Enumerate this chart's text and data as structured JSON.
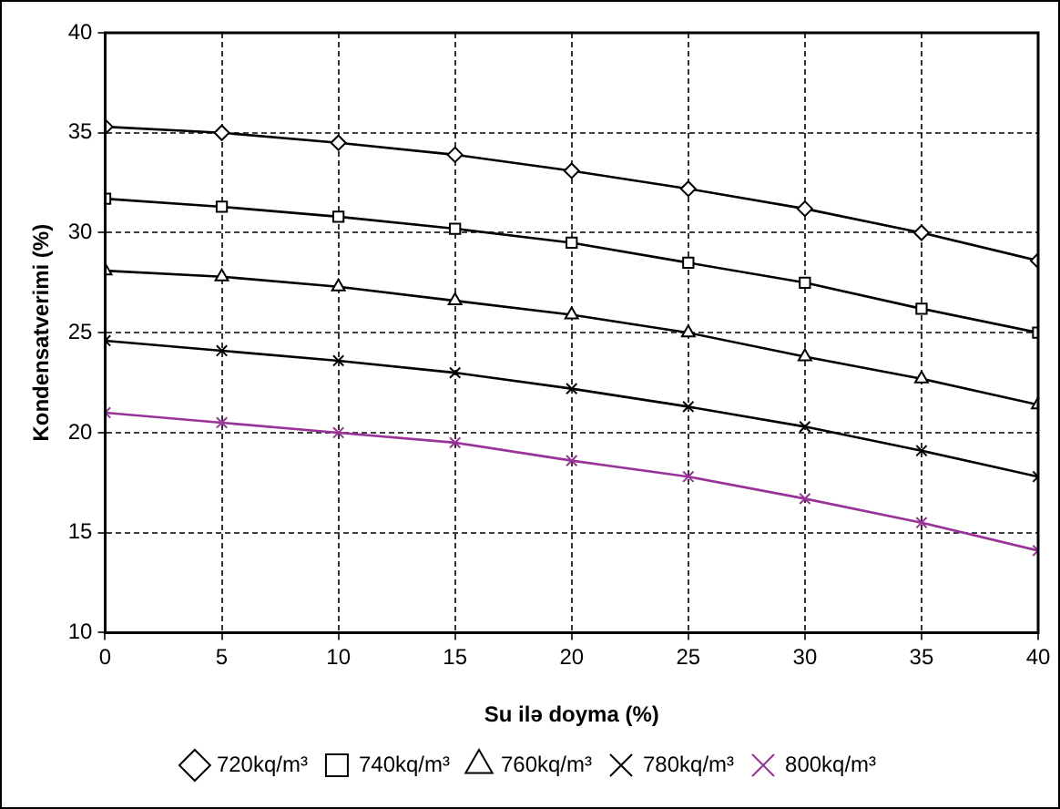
{
  "chart_data": {
    "type": "line",
    "xlabel": "Su ilə doyma (%)",
    "ylabel": "Kondensatverimi (%)",
    "x": [
      0,
      5,
      10,
      15,
      20,
      25,
      30,
      35,
      40
    ],
    "xlim": [
      0,
      40
    ],
    "xticks": [
      0,
      5,
      10,
      15,
      20,
      25,
      30,
      35,
      40
    ],
    "ylim": [
      10,
      40
    ],
    "yticks": [
      10,
      15,
      20,
      25,
      30,
      35,
      40
    ],
    "grid": true,
    "legend": "bottom",
    "line_style": "solid",
    "series": [
      {
        "name": "720kq/m³",
        "color": "#000000",
        "marker": "diamond",
        "values": [
          35.3,
          35,
          34.5,
          33.9,
          33.1,
          32.2,
          31.2,
          30,
          28.6
        ]
      },
      {
        "name": "740kq/m³",
        "color": "#000000",
        "marker": "square",
        "values": [
          31.7,
          31.3,
          30.8,
          30.2,
          29.5,
          28.5,
          27.5,
          26.2,
          25
        ]
      },
      {
        "name": "760kq/m³",
        "color": "#000000",
        "marker": "triangle",
        "values": [
          28.1,
          27.8,
          27.3,
          26.6,
          25.9,
          25,
          23.8,
          22.7,
          21.4
        ]
      },
      {
        "name": "780kq/m³",
        "color": "#000000",
        "marker": "cross",
        "values": [
          24.6,
          24.1,
          23.6,
          23,
          22.2,
          21.3,
          20.3,
          19.1,
          17.8
        ]
      },
      {
        "name": "800kq/m³",
        "color": "#993399",
        "marker": "cross",
        "values": [
          21,
          20.5,
          20,
          19.5,
          18.6,
          17.8,
          16.7,
          15.5,
          14.1
        ]
      }
    ]
  }
}
